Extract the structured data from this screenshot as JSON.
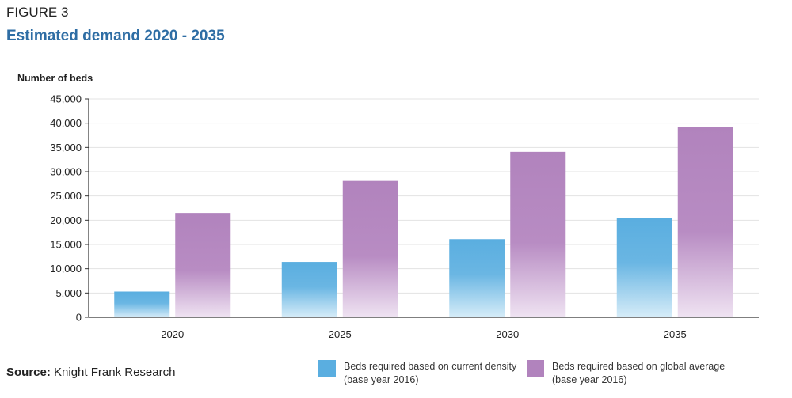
{
  "figure": {
    "label": "FIGURE 3",
    "title": "Estimated demand 2020 - 2035"
  },
  "source": {
    "prefix": "Source:",
    "text": "Knight Frank Research"
  },
  "colors": {
    "title": "#2e6da4",
    "series_blue": "#5aaee0",
    "series_purple": "#b183bd"
  },
  "chart_data": {
    "type": "bar",
    "ylabel": "Number of beds",
    "xlabel": "",
    "ylim": [
      0,
      45000
    ],
    "yticks": [
      0,
      5000,
      10000,
      15000,
      20000,
      25000,
      30000,
      35000,
      40000,
      45000
    ],
    "ytick_labels": [
      "0",
      "5,000",
      "10,000",
      "15,000",
      "20,000",
      "25,000",
      "30,000",
      "35,000",
      "40,000",
      "45,000"
    ],
    "categories": [
      "2020",
      "2025",
      "2030",
      "2035"
    ],
    "grid": true,
    "legend_position": "bottom",
    "series": [
      {
        "name": "Beds required based on current density (base year 2016)",
        "values": [
          5300,
          11400,
          16100,
          20400
        ],
        "color": "#5aaee0"
      },
      {
        "name": "Beds required based on global average (base year 2016)",
        "values": [
          21500,
          28100,
          34100,
          39200
        ],
        "color": "#b183bd"
      }
    ]
  }
}
